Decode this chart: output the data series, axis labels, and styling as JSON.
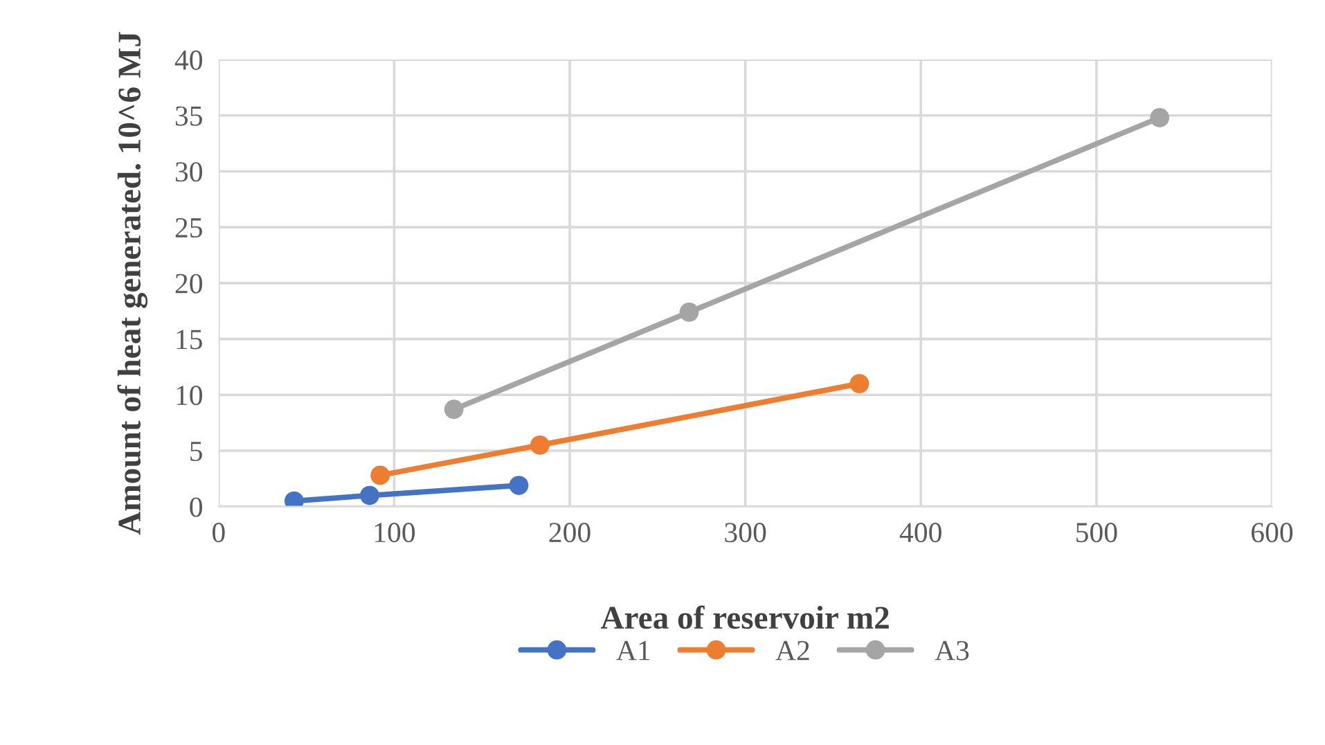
{
  "chart_data": {
    "type": "line",
    "xlabel": "Area of reservoir m2",
    "ylabel": "Amount of heat generated. 10^6 MJ",
    "series": [
      {
        "name": "A1",
        "color": "#4472c4",
        "x": [
          43,
          86,
          171
        ],
        "values": [
          0.5,
          1.0,
          1.9
        ]
      },
      {
        "name": "A2",
        "color": "#ed7d31",
        "x": [
          92,
          183,
          365
        ],
        "values": [
          2.8,
          5.5,
          11.0
        ]
      },
      {
        "name": "A3",
        "color": "#a5a5a5",
        "x": [
          134,
          268,
          536
        ],
        "values": [
          8.7,
          17.4,
          34.8
        ]
      }
    ],
    "xlim": [
      0,
      600
    ],
    "xticks": [
      0,
      100,
      200,
      300,
      400,
      500,
      600
    ],
    "ylim": [
      0,
      40
    ],
    "yticks": [
      0,
      5,
      10,
      15,
      20,
      25,
      30,
      35,
      40
    ],
    "grid": true,
    "legend": "bottom",
    "marker": "circle",
    "line_style": "solid"
  }
}
